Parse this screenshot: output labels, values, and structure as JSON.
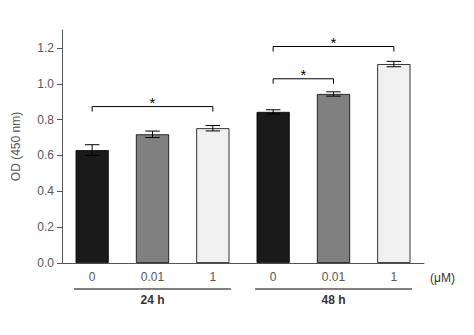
{
  "chart_data": {
    "type": "bar",
    "categories": [
      "0",
      "0.01",
      "1",
      "0",
      "0.01",
      "1"
    ],
    "group_labels": [
      "24 h",
      "48 h"
    ],
    "values": [
      0.63,
      0.718,
      0.752,
      0.843,
      0.943,
      1.11
    ],
    "errors": [
      0.03,
      0.018,
      0.015,
      0.012,
      0.012,
      0.015
    ],
    "colors": [
      "#1a1a1a",
      "#808080",
      "#f0f0f0",
      "#1a1a1a",
      "#808080",
      "#f0f0f0"
    ],
    "ylabel": "OD (450 nm)",
    "xlabel": "(μM)",
    "ylim": [
      0.0,
      1.3
    ],
    "yticks": [
      {
        "value": 0.0,
        "label": "0.0"
      },
      0.2,
      0.4,
      0.6,
      0.8,
      {
        "value": 1.0,
        "label": "1.0"
      },
      1.2
    ],
    "annotations": [
      {
        "text": "*",
        "from": 0,
        "to": 2,
        "y": 0.845
      },
      {
        "text": "*",
        "from": 3,
        "to": 4,
        "y": 1.0
      },
      {
        "text": "*",
        "from": 3,
        "to": 5,
        "y": 1.18
      }
    ],
    "grid": false
  }
}
